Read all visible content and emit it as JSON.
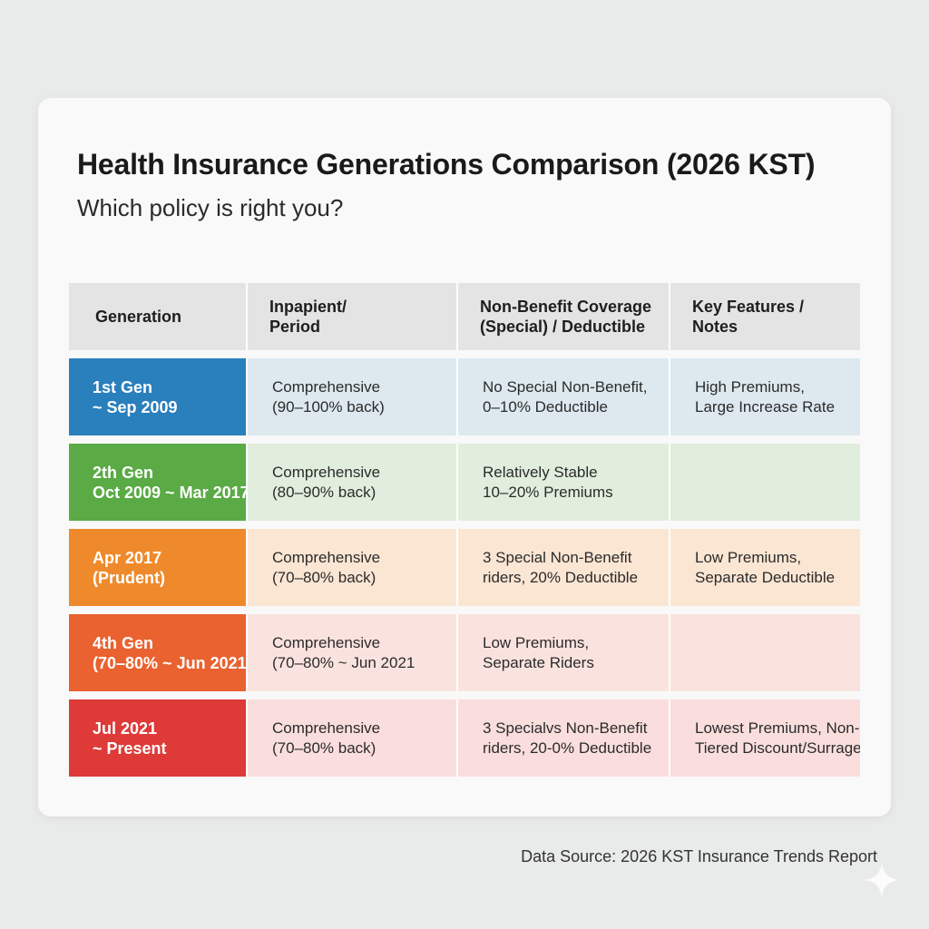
{
  "title": "Health Insurance Generations Comparison (2026 KST)",
  "subtitle": "Which policy is right you?",
  "table": {
    "headers": [
      [
        "Generation"
      ],
      [
        "Inpapient/",
        "Period"
      ],
      [
        "Non-Benefit Coverage",
        "(Special) / Deductible"
      ],
      [
        "Key Features /",
        "Notes"
      ]
    ],
    "rows": [
      {
        "generation": [
          "1st Gen",
          "~ Sep 2009"
        ],
        "inpatient": [
          "Comprehensive",
          "(90–100% back)"
        ],
        "coverage": [
          "No Special Non-Benefit,",
          "0–10% Deductible"
        ],
        "notes": [
          "High Premiums,",
          "Large Increase Rate"
        ]
      },
      {
        "generation": [
          "2th Gen",
          "Oct 2009 ~ Mar 2017"
        ],
        "inpatient": [
          "Comprehensive",
          "(80–90% back)"
        ],
        "coverage": [
          "Relatively Stable",
          "10–20% Premiums"
        ],
        "notes": [
          "",
          ""
        ]
      },
      {
        "generation": [
          "Apr 2017",
          "(Prudent)"
        ],
        "inpatient": [
          "Comprehensive",
          "(70–80% back)"
        ],
        "coverage": [
          "3 Special Non-Benefit",
          "riders, 20% Deductible"
        ],
        "notes": [
          "Low Premiums,",
          "Separate Deductible"
        ]
      },
      {
        "generation": [
          "4th Gen",
          "(70–80% ~ Jun 2021"
        ],
        "inpatient": [
          "Comprehensive",
          "(70–80% ~ Jun 2021"
        ],
        "coverage": [
          "Low Premiums,",
          "Separate Riders"
        ],
        "notes": [
          "",
          ""
        ]
      },
      {
        "generation": [
          "Jul 2021",
          "~ Present"
        ],
        "inpatient": [
          "Comprehensive",
          "(70–80% back)"
        ],
        "coverage": [
          "3 Specialvs Non-Benefit",
          "riders, 20-0% Deductible"
        ],
        "notes": [
          "Lowest Premiums, Non-",
          "Tiered Discount/Surrage"
        ]
      }
    ]
  },
  "source": "Data Source: 2026 KST Insurance Trends Report",
  "colors": {
    "gen1": "#2a7fbd",
    "gen2": "#5aaa45",
    "gen3": "#ee8a2c",
    "gen4": "#ea6230",
    "gen5": "#dd3a38"
  },
  "icons": {
    "watermark": "sparkle-icon"
  }
}
